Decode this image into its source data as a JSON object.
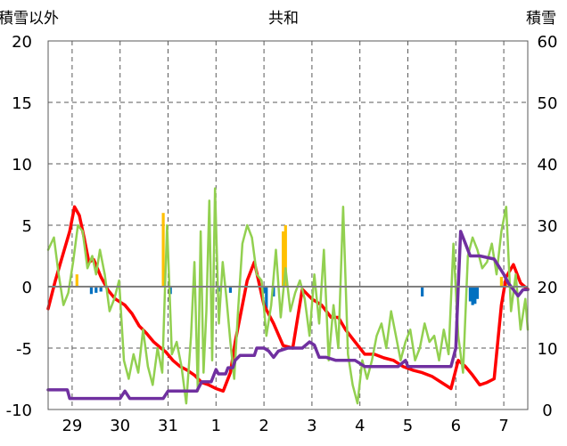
{
  "chart_data": {
    "type": "line",
    "title": "共和",
    "y_left_label": "積雪以外",
    "y_right_label": "積雪",
    "y_left_range": [
      -10,
      20
    ],
    "y_right_range": [
      0,
      60
    ],
    "y_left_ticks": [
      "20",
      "15",
      "10",
      "5",
      "0",
      "-5",
      "-10"
    ],
    "y_right_ticks": [
      "60",
      "50",
      "40",
      "30",
      "20",
      "10",
      "0"
    ],
    "x_range_days": [
      0,
      10
    ],
    "x_tick_labels": [
      "29",
      "30",
      "31",
      "1",
      "2",
      "3",
      "4",
      "5",
      "6",
      "7"
    ],
    "x_tick_positions": [
      0.5,
      1.5,
      2.5,
      3.5,
      4.5,
      5.5,
      6.5,
      7.5,
      8.5,
      9.5
    ],
    "grid": "dashed-vertical-and-horizontal",
    "colors": {
      "red": "#ff0000",
      "green": "#92d050",
      "purple": "#7030a0",
      "blue": "#0070c0",
      "orange": "#ffc000"
    },
    "series": [
      {
        "color": "#ff0000",
        "axis": "left",
        "x": [
          0.0,
          0.15,
          0.3,
          0.45,
          0.55,
          0.65,
          0.75,
          0.85,
          0.95,
          1.1,
          1.25,
          1.4,
          1.6,
          1.75,
          1.9,
          2.05,
          2.2,
          2.35,
          2.45,
          2.6,
          2.75,
          2.9,
          3.05,
          3.2,
          3.35,
          3.5,
          3.65,
          3.8,
          3.9,
          4.0,
          4.15,
          4.3,
          4.5,
          4.7,
          4.9,
          5.1,
          5.3,
          5.5,
          5.7,
          5.9,
          6.05,
          6.2,
          6.4,
          6.6,
          6.8,
          7.0,
          7.2,
          7.4,
          7.6,
          7.8,
          8.0,
          8.2,
          8.4,
          8.55,
          8.7,
          8.85,
          9.0,
          9.15,
          9.3,
          9.45,
          9.55,
          9.7,
          9.85,
          10.0
        ],
        "values": [
          -1.8,
          0.5,
          2.5,
          4.5,
          6.5,
          5.8,
          4.0,
          2.0,
          2.2,
          0.8,
          -0.3,
          -1.0,
          -1.5,
          -2.2,
          -3.2,
          -3.8,
          -4.5,
          -5.0,
          -5.3,
          -6.0,
          -6.5,
          -6.8,
          -7.2,
          -7.8,
          -8.0,
          -8.3,
          -8.5,
          -7.0,
          -4.5,
          -2.5,
          0.5,
          2.0,
          -1.5,
          -3.0,
          -4.8,
          -5.0,
          -0.2,
          -1.0,
          -1.5,
          -2.5,
          -2.5,
          -3.5,
          -4.5,
          -5.5,
          -5.5,
          -5.8,
          -6.0,
          -6.5,
          -6.8,
          -7.0,
          -7.3,
          -7.8,
          -8.3,
          -6.0,
          -6.5,
          -7.2,
          -8.0,
          -7.8,
          -7.5,
          -1.5,
          0.8,
          1.8,
          0.3,
          -0.2
        ]
      },
      {
        "color": "#92d050",
        "axis": "left",
        "x": [
          0.0,
          0.12,
          0.22,
          0.32,
          0.42,
          0.52,
          0.62,
          0.72,
          0.82,
          0.92,
          1.0,
          1.08,
          1.18,
          1.28,
          1.38,
          1.48,
          1.58,
          1.68,
          1.78,
          1.88,
          1.98,
          2.08,
          2.18,
          2.28,
          2.38,
          2.48,
          2.58,
          2.68,
          2.78,
          2.88,
          2.98,
          3.05,
          3.12,
          3.18,
          3.24,
          3.3,
          3.36,
          3.42,
          3.48,
          3.56,
          3.64,
          3.72,
          3.8,
          3.88,
          3.96,
          4.05,
          4.15,
          4.25,
          4.35,
          4.45,
          4.55,
          4.65,
          4.75,
          4.85,
          4.95,
          5.05,
          5.15,
          5.25,
          5.35,
          5.45,
          5.55,
          5.65,
          5.75,
          5.85,
          5.95,
          6.05,
          6.15,
          6.25,
          6.35,
          6.45,
          6.55,
          6.65,
          6.75,
          6.85,
          6.95,
          7.05,
          7.15,
          7.25,
          7.35,
          7.45,
          7.55,
          7.65,
          7.75,
          7.85,
          7.95,
          8.05,
          8.15,
          8.25,
          8.35,
          8.45,
          8.55,
          8.65,
          8.75,
          8.85,
          8.95,
          9.05,
          9.15,
          9.25,
          9.35,
          9.45,
          9.55,
          9.65,
          9.75,
          9.85,
          9.95,
          10.0
        ],
        "values": [
          3.0,
          4.0,
          1.0,
          -1.5,
          -0.5,
          2.0,
          5.0,
          4.5,
          1.5,
          2.5,
          1.0,
          3.0,
          1.0,
          -2.0,
          -1.0,
          0.5,
          -6.0,
          -7.5,
          -5.5,
          -7.0,
          -3.5,
          -6.5,
          -8.0,
          -5.0,
          -7.0,
          5.0,
          -5.5,
          -4.5,
          -6.5,
          -9.5,
          -4.0,
          2.0,
          -8.5,
          4.5,
          -7.0,
          -2.0,
          7.0,
          -6.0,
          8.0,
          -3.0,
          2.0,
          -1.0,
          -4.5,
          -7.5,
          -2.0,
          3.5,
          5.0,
          4.0,
          1.0,
          0.5,
          -4.0,
          -1.5,
          3.0,
          -2.5,
          1.5,
          -2.0,
          -0.5,
          0.5,
          -1.0,
          -4.0,
          1.0,
          -3.0,
          3.0,
          -6.0,
          -1.5,
          -5.0,
          6.5,
          -5.5,
          -8.0,
          -9.5,
          -6.0,
          -7.5,
          -6.0,
          -4.0,
          -3.0,
          -5.0,
          -2.0,
          -4.0,
          -6.0,
          -4.5,
          -3.5,
          -6.0,
          -5.0,
          -3.0,
          -4.5,
          -4.0,
          -6.0,
          -3.5,
          -5.5,
          3.5,
          -4.0,
          -7.0,
          2.5,
          4.0,
          3.0,
          1.5,
          2.0,
          3.5,
          1.0,
          4.5,
          6.5,
          -2.0,
          1.0,
          -3.5,
          -1.0,
          -3.5
        ]
      },
      {
        "color": "#7030a0",
        "axis": "right",
        "x": [
          0.0,
          0.4,
          0.45,
          1.5,
          1.6,
          1.7,
          2.4,
          2.5,
          2.8,
          3.1,
          3.2,
          3.4,
          3.5,
          3.55,
          3.7,
          3.75,
          3.85,
          3.9,
          4.0,
          4.1,
          4.3,
          4.35,
          4.5,
          4.6,
          4.7,
          4.8,
          5.0,
          5.3,
          5.45,
          5.55,
          5.65,
          5.8,
          6.0,
          6.4,
          6.6,
          6.7,
          7.0,
          7.3,
          7.45,
          7.5,
          7.7,
          7.9,
          8.0,
          8.2,
          8.3,
          8.4,
          8.5,
          8.55,
          8.6,
          8.7,
          8.8,
          9.0,
          9.3,
          9.5,
          9.6,
          9.7,
          9.8,
          9.9,
          10.0
        ],
        "values": [
          3.2,
          3.2,
          1.8,
          1.8,
          3.0,
          1.8,
          1.8,
          3.0,
          3.0,
          3.0,
          4.5,
          4.5,
          6.5,
          5.8,
          5.8,
          6.8,
          6.8,
          8.0,
          8.8,
          8.8,
          8.8,
          10.0,
          10.0,
          9.5,
          8.5,
          9.5,
          10.0,
          10.0,
          11.0,
          10.5,
          8.5,
          8.5,
          8.0,
          8.0,
          7.0,
          7.0,
          7.0,
          7.0,
          8.0,
          7.0,
          7.0,
          7.0,
          7.0,
          7.0,
          7.0,
          7.0,
          10.0,
          20.0,
          29.0,
          27.0,
          25.0,
          25.0,
          24.5,
          22.0,
          20.5,
          19.5,
          18.5,
          19.5,
          19.5
        ]
      }
    ],
    "bars": [
      {
        "color": "#0070c0",
        "axis": "left",
        "x": [
          0.9,
          1.0,
          1.1,
          2.55,
          3.55,
          3.8,
          4.5,
          4.55,
          4.7,
          7.8,
          8.8,
          8.85,
          8.9,
          8.95
        ],
        "values": [
          -0.6,
          -0.5,
          -0.4,
          -0.6,
          -0.4,
          -0.5,
          -0.5,
          -1.8,
          -0.8,
          -0.8,
          -1.2,
          -1.5,
          -1.4,
          -1.0
        ]
      },
      {
        "color": "#ffc000",
        "axis": "left",
        "x": [
          0.6,
          2.4,
          4.9,
          4.95,
          9.45,
          9.55
        ],
        "values": [
          1.0,
          6.0,
          4.5,
          5.0,
          0.8,
          0.6
        ]
      }
    ]
  }
}
